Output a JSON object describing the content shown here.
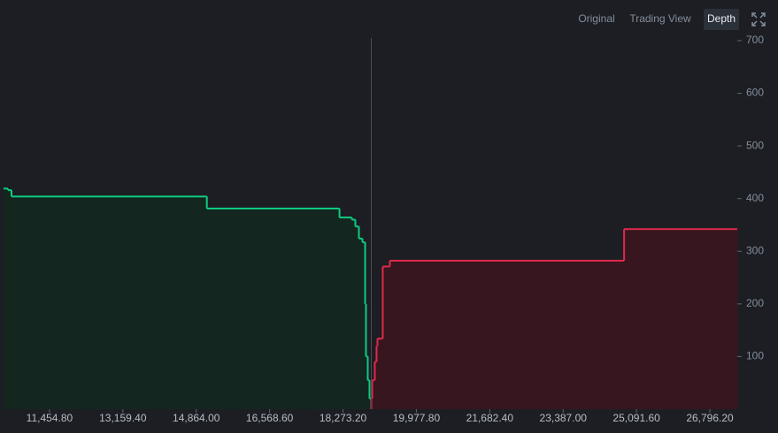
{
  "view_options": [
    "Original",
    "Trading View",
    "Depth"
  ],
  "active_view_index": 2,
  "chart_data": {
    "type": "depth",
    "xlim": [
      10387,
      27433
    ],
    "ylim": [
      0,
      705
    ],
    "xticks": [
      {
        "value": 11454.8,
        "label": "11,454.80"
      },
      {
        "value": 13159.4,
        "label": "13,159.40"
      },
      {
        "value": 14864,
        "label": "14,864.00"
      },
      {
        "value": 16568.6,
        "label": "16,568.60"
      },
      {
        "value": 18273.2,
        "label": "18,273.20"
      },
      {
        "value": 19977.8,
        "label": "19,977.80"
      },
      {
        "value": 21682.4,
        "label": "21,682.40"
      },
      {
        "value": 23387,
        "label": "23,387.00"
      },
      {
        "value": 25091.6,
        "label": "25,091.60"
      },
      {
        "value": 26796.2,
        "label": "26,796.20"
      }
    ],
    "yticks": [
      100,
      200,
      300,
      400,
      500,
      600,
      700
    ],
    "mid_price": 18930,
    "series": [
      {
        "color": "#0ecb81",
        "fill": "#13261f",
        "step": "pre",
        "x": [
          10490,
          10572,
          15110,
          18191,
          18478,
          18560,
          18643,
          18725,
          18787,
          18807,
          18848,
          18889,
          18930
        ],
        "values": [
          419,
          416,
          404,
          381,
          364,
          360,
          347,
          324,
          317,
          200,
          100,
          55,
          20
        ]
      },
      {
        "color": "#e0294a",
        "fill": "#37161f",
        "step": "post",
        "x": [
          18930,
          18951,
          19012,
          19053,
          19074,
          19197,
          19361,
          24803
        ],
        "values": [
          20,
          55,
          90,
          120,
          134,
          271,
          282,
          342
        ]
      }
    ]
  }
}
